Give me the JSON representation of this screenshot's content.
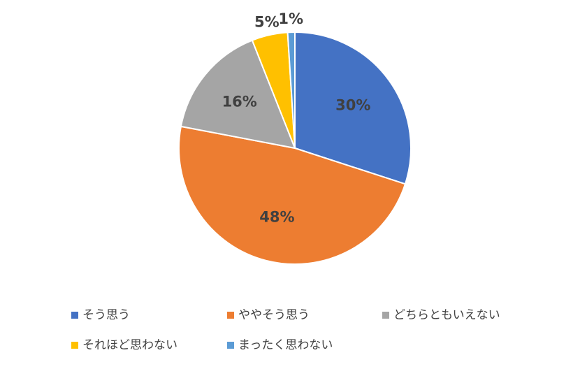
{
  "chart_data": {
    "type": "pie",
    "categories": [
      "そう思う",
      "ややそう思う",
      "どちらともいえない",
      "それほど思わない",
      "まったく思わない"
    ],
    "values": [
      30,
      48,
      16,
      5,
      1
    ],
    "value_labels": [
      "30%",
      "48%",
      "16%",
      "5%",
      "1%"
    ],
    "colors": [
      "#4472c4",
      "#ed7d31",
      "#a5a5a5",
      "#ffc000",
      "#5b9bd5"
    ]
  }
}
